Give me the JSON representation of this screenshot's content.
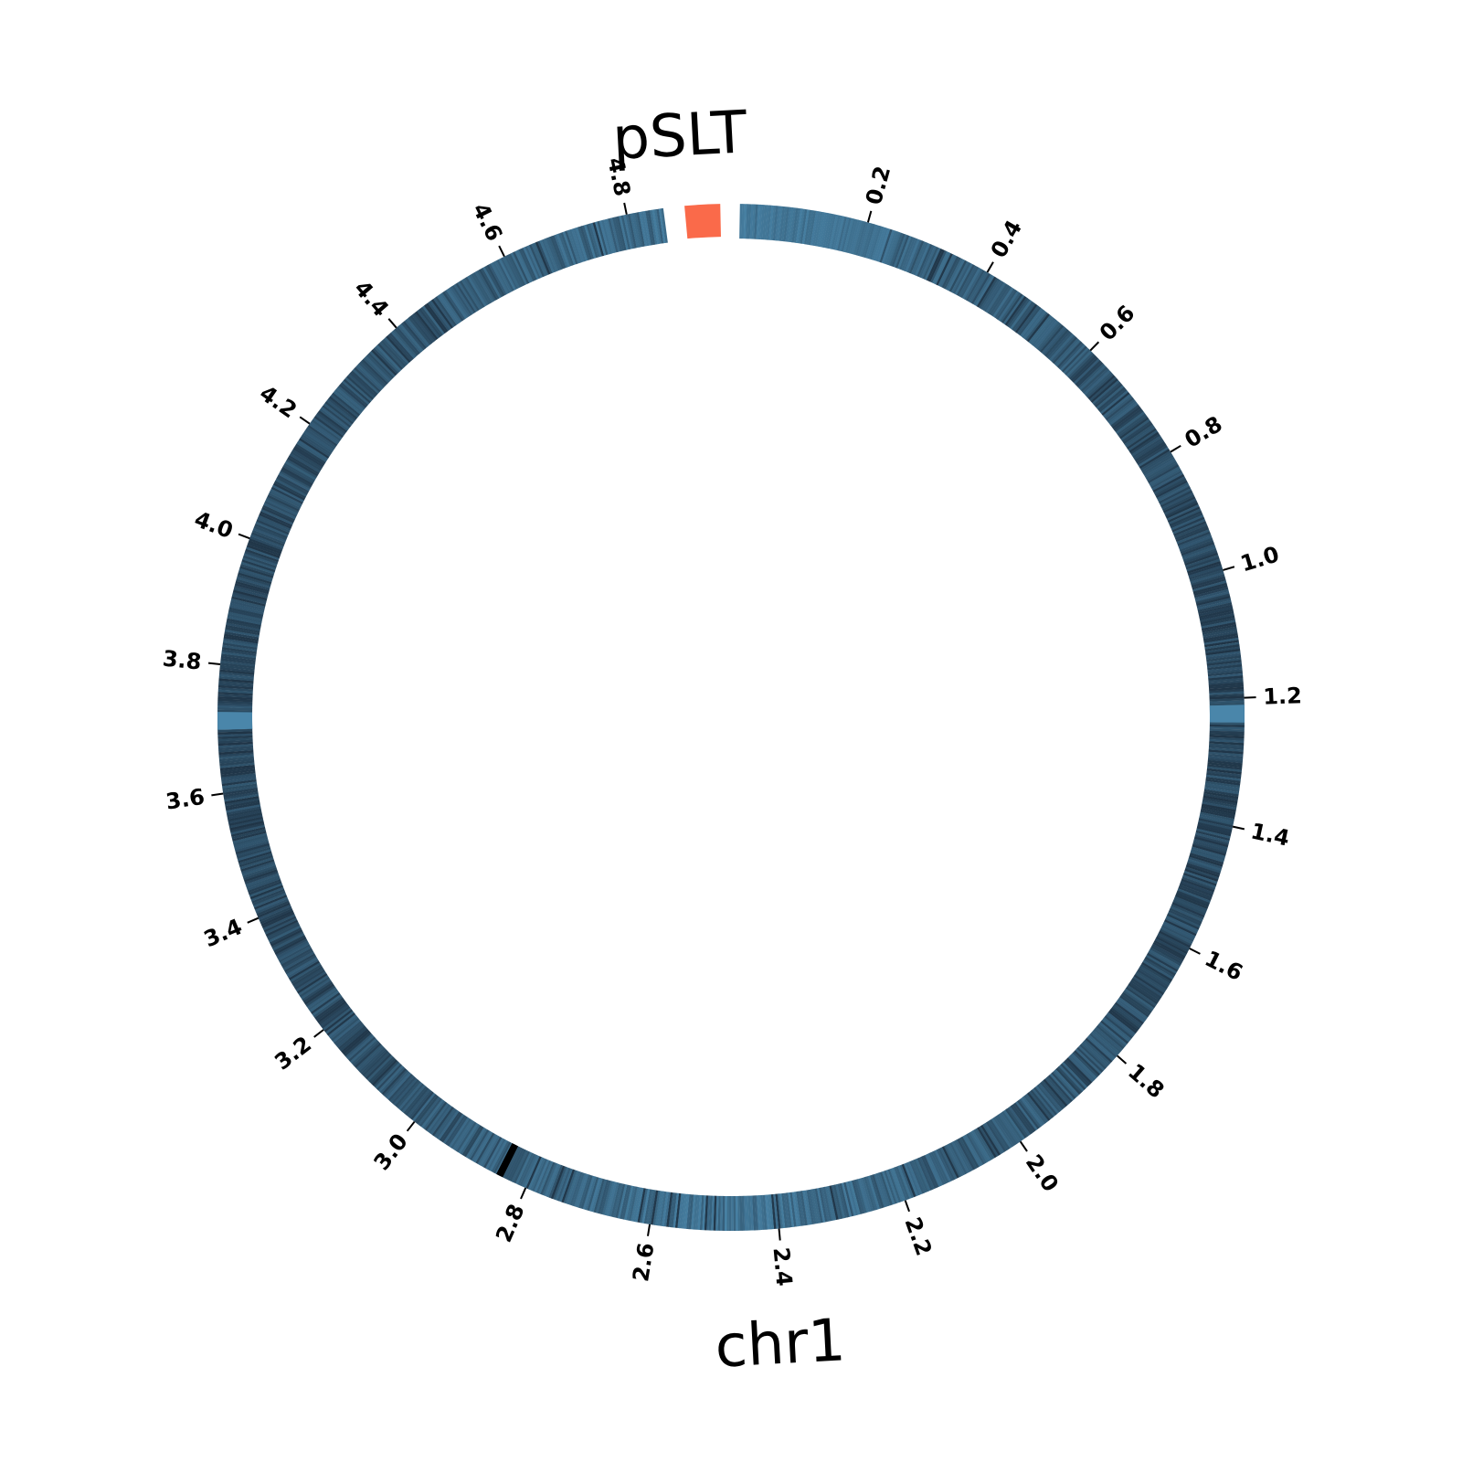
{
  "diagram": {
    "type": "circular-genome",
    "records": [
      {
        "name": "chr1",
        "kind": "chromosome",
        "length_mb": 4.857,
        "color": "#4a86aa",
        "dark_color": "#1f3446",
        "ticks": [
          "0.2",
          "0.4",
          "0.6",
          "0.8",
          "1.0",
          "1.2",
          "1.4",
          "1.6",
          "1.8",
          "2.0",
          "2.2",
          "2.4",
          "2.6",
          "2.8",
          "3.0",
          "3.2",
          "3.4",
          "3.6",
          "3.8",
          "4.0",
          "4.2",
          "4.4",
          "4.6",
          "4.8"
        ],
        "tick_values": [
          0.2,
          0.4,
          0.6,
          0.8,
          1.0,
          1.2,
          1.4,
          1.6,
          1.8,
          2.0,
          2.2,
          2.4,
          2.6,
          2.8,
          3.0,
          3.2,
          3.4,
          3.6,
          3.8,
          4.0,
          4.2,
          4.4,
          4.6,
          4.8
        ]
      },
      {
        "name": "pSLT",
        "kind": "plasmid",
        "length_mb": 0.094,
        "color": "#fa6a4a"
      }
    ]
  }
}
